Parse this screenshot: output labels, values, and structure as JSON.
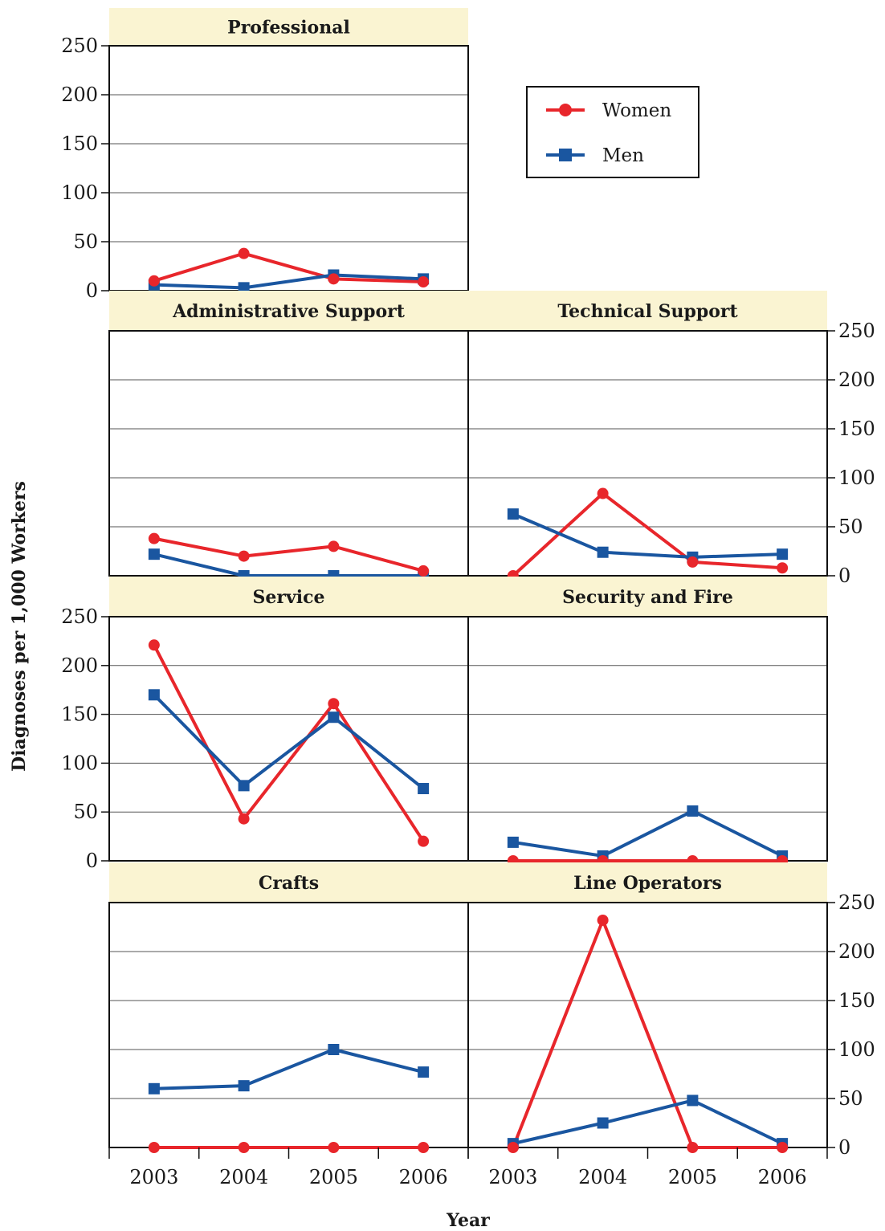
{
  "chart_data": {
    "type": "line",
    "ylabel": "Diagnoses per 1,000 Workers",
    "xlabel": "Year",
    "x": [
      "2003",
      "2004",
      "2005",
      "2006"
    ],
    "yticks": [
      0,
      50,
      100,
      150,
      200,
      250
    ],
    "ylim": [
      0,
      250
    ],
    "grid": true,
    "legend": {
      "placement": "top-right",
      "entries": [
        {
          "name": "Women",
          "color": "#e8262b",
          "marker": "circle"
        },
        {
          "name": "Men",
          "color": "#1a56a0",
          "marker": "square"
        }
      ]
    },
    "panels": [
      {
        "title": "Professional",
        "series": [
          {
            "name": "Women",
            "values": [
              10,
              38,
              12,
              9
            ]
          },
          {
            "name": "Men",
            "values": [
              6,
              3,
              16,
              12
            ]
          }
        ]
      },
      {
        "title": "Administrative Support",
        "series": [
          {
            "name": "Women",
            "values": [
              38,
              20,
              30,
              5
            ]
          },
          {
            "name": "Men",
            "values": [
              22,
              0,
              0,
              0
            ]
          }
        ]
      },
      {
        "title": "Technical Support",
        "series": [
          {
            "name": "Women",
            "values": [
              0,
              84,
              14,
              8
            ]
          },
          {
            "name": "Men",
            "values": [
              63,
              24,
              19,
              22
            ]
          }
        ]
      },
      {
        "title": "Service",
        "series": [
          {
            "name": "Women",
            "values": [
              221,
              43,
              161,
              20
            ]
          },
          {
            "name": "Men",
            "values": [
              170,
              77,
              147,
              74
            ]
          }
        ]
      },
      {
        "title": "Security and Fire",
        "series": [
          {
            "name": "Women",
            "values": [
              0,
              0,
              0,
              0
            ]
          },
          {
            "name": "Men",
            "values": [
              19,
              5,
              51,
              5
            ]
          }
        ]
      },
      {
        "title": "Crafts",
        "series": [
          {
            "name": "Women",
            "values": [
              0,
              0,
              0,
              0
            ]
          },
          {
            "name": "Men",
            "values": [
              60,
              63,
              100,
              77
            ]
          }
        ]
      },
      {
        "title": "Line Operators",
        "series": [
          {
            "name": "Women",
            "values": [
              0,
              232,
              0,
              0
            ]
          },
          {
            "name": "Men",
            "values": [
              4,
              25,
              48,
              4
            ]
          }
        ]
      }
    ]
  },
  "colors": {
    "women": "#e8262b",
    "men": "#1a56a0",
    "title_band": "#faf4d2"
  }
}
